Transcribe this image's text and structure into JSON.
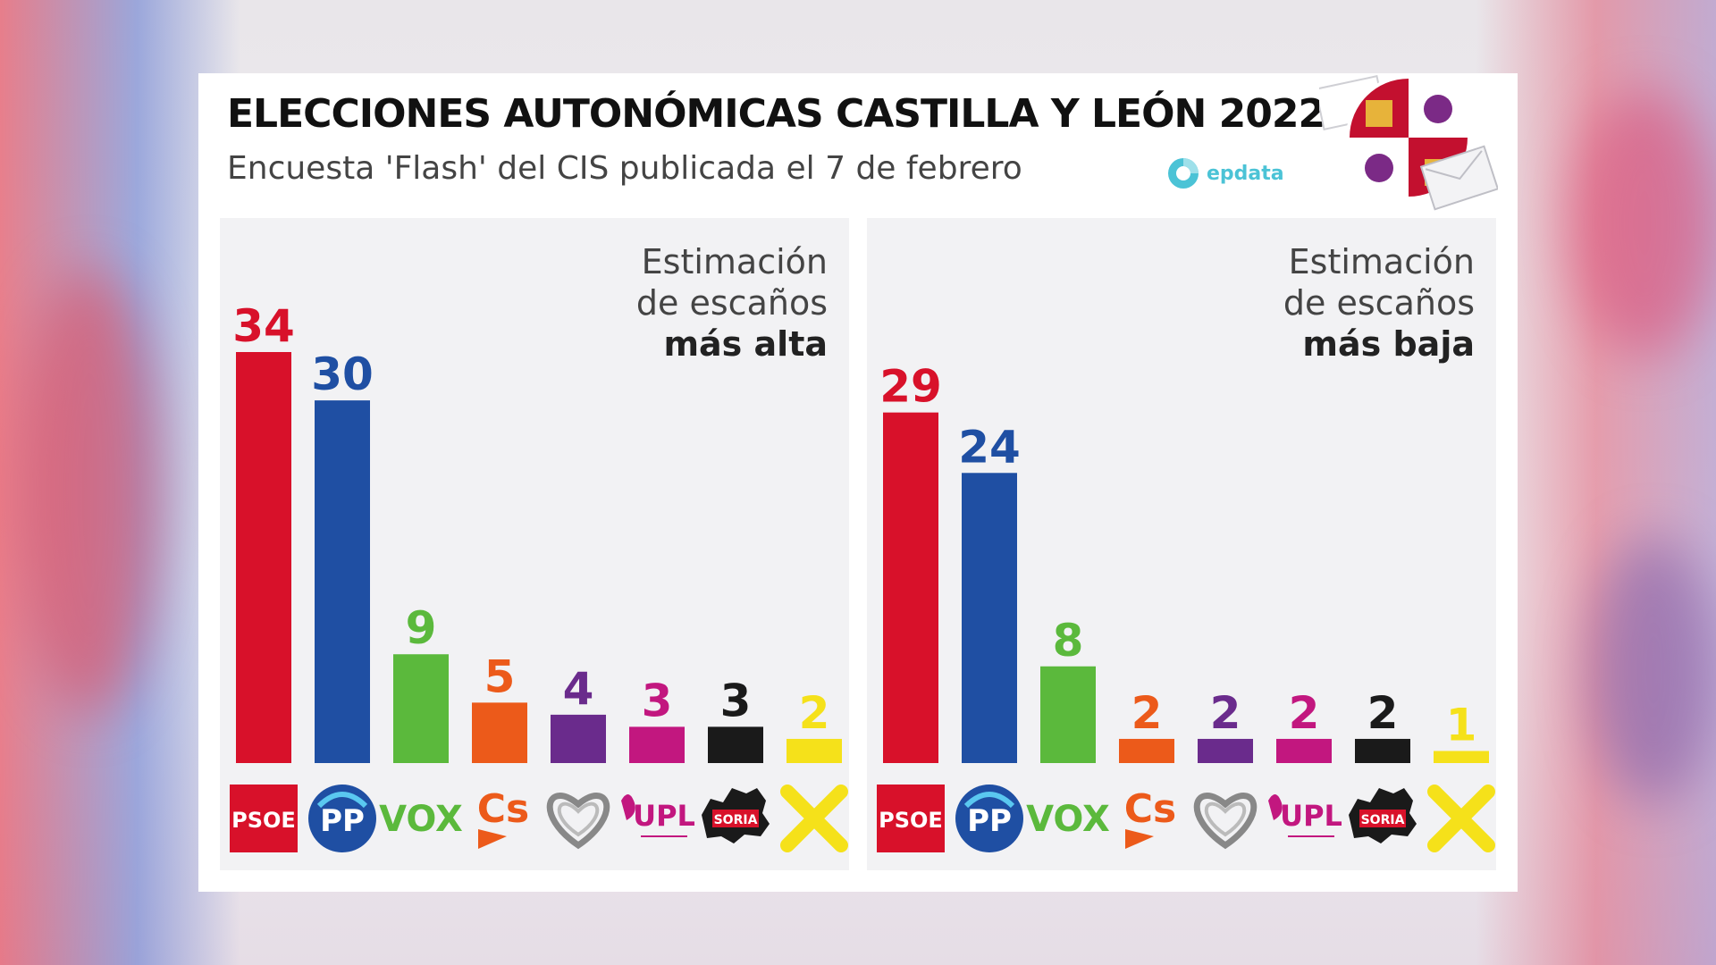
{
  "header": {
    "title": "ELECCIONES AUTONÓMICAS CASTILLA Y LEÓN 2022",
    "subtitle": "Encuesta 'Flash' del CIS publicada el 7 de febrero",
    "brand": "epdata"
  },
  "parties": [
    {
      "key": "psoe",
      "logo_text": "PSOE",
      "color": "#d8112a"
    },
    {
      "key": "pp",
      "logo_text": "PP",
      "color": "#1f4fa3"
    },
    {
      "key": "vox",
      "logo_text": "VOX",
      "color": "#5bb93c"
    },
    {
      "key": "cs",
      "logo_text": "Cs",
      "color": "#ec5a1a"
    },
    {
      "key": "podemos",
      "logo_text": "",
      "color": "#6a2b8c"
    },
    {
      "key": "upl",
      "logo_text": "UPL",
      "color": "#c2177f"
    },
    {
      "key": "soria",
      "logo_text": "SORIA",
      "color": "#1a1a1a"
    },
    {
      "key": "xav",
      "logo_text": "",
      "color": "#f5e11a"
    }
  ],
  "chart_data": [
    {
      "type": "bar",
      "caption": [
        "Estimación",
        "de escaños",
        "más alta"
      ],
      "categories": [
        "PSOE",
        "PP",
        "VOX",
        "Cs",
        "Podemos",
        "UPL",
        "Soria ¡Ya!",
        "Por Ávila"
      ],
      "values": [
        34,
        30,
        9,
        5,
        4,
        3,
        3,
        2
      ],
      "ylim": [
        0,
        34
      ]
    },
    {
      "type": "bar",
      "caption": [
        "Estimación",
        "de escaños",
        "más baja"
      ],
      "categories": [
        "PSOE",
        "PP",
        "VOX",
        "Cs",
        "Podemos",
        "UPL",
        "Soria ¡Ya!",
        "Por Ávila"
      ],
      "values": [
        29,
        24,
        8,
        2,
        2,
        2,
        2,
        1
      ],
      "ylim": [
        0,
        34
      ]
    }
  ]
}
